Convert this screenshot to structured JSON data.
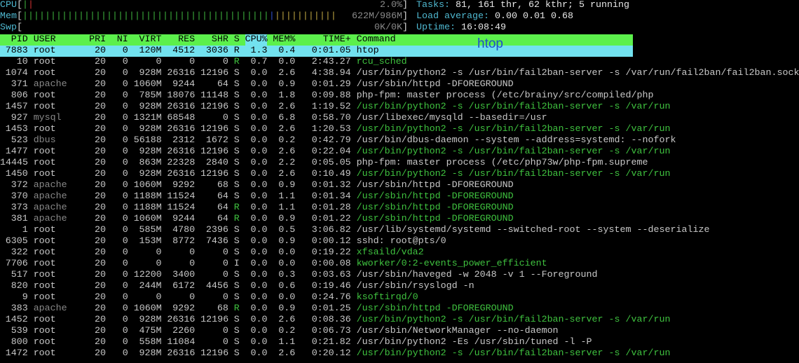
{
  "meters": {
    "cpu": {
      "label": "CPU",
      "value": "2.0%",
      "bars": [
        {
          "color": "green",
          "count": 1
        },
        {
          "color": "red",
          "count": 1
        }
      ]
    },
    "mem": {
      "label": "Mem",
      "value": "622M/986M",
      "bars": [
        {
          "color": "green",
          "count": 44
        },
        {
          "color": "blue",
          "count": 1
        },
        {
          "color": "yellow",
          "count": 11
        }
      ]
    },
    "swp": {
      "label": "Swp",
      "value": "0K/0K",
      "bars": []
    }
  },
  "summary": {
    "tasks_label": "Tasks:",
    "tasks_value": "81, 161 thr, 62 kthr; 5 running",
    "load_label": "Load average:",
    "load_value": "0.00 0.01 0.68",
    "uptime_label": "Uptime:",
    "uptime_value": "16:08:49"
  },
  "columns": [
    "PID",
    "USER",
    "PRI",
    "NI",
    "VIRT",
    "RES",
    "SHR",
    "S",
    "CPU%",
    "MEM%",
    "TIME+",
    "Command"
  ],
  "sort_column": "CPU%",
  "overlay_label": "htop",
  "processes": [
    {
      "pid": "7883",
      "user": "root",
      "pri": "20",
      "ni": "0",
      "virt": "120M",
      "res": "4512",
      "shr": "3036",
      "s": "R",
      "cpu": "1.3",
      "mem": "0.4",
      "time": "0:01.05",
      "cmd": "htop",
      "selected": true
    },
    {
      "pid": "10",
      "user": "root",
      "pri": "20",
      "ni": "0",
      "virt": "0",
      "res": "0",
      "shr": "0",
      "s": "R",
      "cpu": "0.7",
      "mem": "0.0",
      "time": "2:43.27",
      "cmd": "rcu_sched",
      "thread": true
    },
    {
      "pid": "1074",
      "user": "root",
      "pri": "20",
      "ni": "0",
      "virt": "928M",
      "res": "26316",
      "shr": "12196",
      "s": "S",
      "cpu": "0.0",
      "mem": "2.6",
      "time": "4:38.94",
      "cmd": "/usr/bin/python2 -s /usr/bin/fail2ban-server -s /var/run/fail2ban/fail2ban.sock"
    },
    {
      "pid": "371",
      "user": "apache",
      "pri": "20",
      "ni": "0",
      "virt": "1060M",
      "res": "9244",
      "shr": "64",
      "s": "S",
      "cpu": "0.0",
      "mem": "0.9",
      "time": "0:01.29",
      "cmd": "/usr/sbin/httpd -DFOREGROUND"
    },
    {
      "pid": "806",
      "user": "root",
      "pri": "20",
      "ni": "0",
      "virt": "785M",
      "res": "18076",
      "shr": "11148",
      "s": "S",
      "cpu": "0.0",
      "mem": "1.8",
      "time": "0:09.88",
      "cmd": "php-fpm: master process (/etc/brainy/src/compiled/php"
    },
    {
      "pid": "1457",
      "user": "root",
      "pri": "20",
      "ni": "0",
      "virt": "928M",
      "res": "26316",
      "shr": "12196",
      "s": "S",
      "cpu": "0.0",
      "mem": "2.6",
      "time": "1:19.52",
      "cmd": "/usr/bin/python2 -s /usr/bin/fail2ban-server -s /var/run",
      "thread": true
    },
    {
      "pid": "927",
      "user": "mysql",
      "pri": "20",
      "ni": "0",
      "virt": "1321M",
      "res": "68548",
      "shr": "0",
      "s": "S",
      "cpu": "0.0",
      "mem": "6.8",
      "time": "0:58.70",
      "cmd": "/usr/libexec/mysqld --basedir=/usr"
    },
    {
      "pid": "1453",
      "user": "root",
      "pri": "20",
      "ni": "0",
      "virt": "928M",
      "res": "26316",
      "shr": "12196",
      "s": "S",
      "cpu": "0.0",
      "mem": "2.6",
      "time": "1:20.53",
      "cmd": "/usr/bin/python2 -s /usr/bin/fail2ban-server -s /var/run",
      "thread": true
    },
    {
      "pid": "523",
      "user": "dbus",
      "pri": "20",
      "ni": "0",
      "virt": "56188",
      "res": "2312",
      "shr": "1672",
      "s": "S",
      "cpu": "0.0",
      "mem": "0.2",
      "time": "0:42.79",
      "cmd": "/usr/bin/dbus-daemon --system --address=systemd: --nofork"
    },
    {
      "pid": "1477",
      "user": "root",
      "pri": "20",
      "ni": "0",
      "virt": "928M",
      "res": "26316",
      "shr": "12196",
      "s": "S",
      "cpu": "0.0",
      "mem": "2.6",
      "time": "0:22.04",
      "cmd": "/usr/bin/python2 -s /usr/bin/fail2ban-server -s /var/run",
      "thread": true
    },
    {
      "pid": "14445",
      "user": "root",
      "pri": "20",
      "ni": "0",
      "virt": "863M",
      "res": "22328",
      "shr": "2840",
      "s": "S",
      "cpu": "0.0",
      "mem": "2.2",
      "time": "0:05.05",
      "cmd": "php-fpm: master process (/etc/php73w/php-fpm.supreme"
    },
    {
      "pid": "1450",
      "user": "root",
      "pri": "20",
      "ni": "0",
      "virt": "928M",
      "res": "26316",
      "shr": "12196",
      "s": "S",
      "cpu": "0.0",
      "mem": "2.6",
      "time": "0:10.49",
      "cmd": "/usr/bin/python2 -s /usr/bin/fail2ban-server -s /var/run",
      "thread": true
    },
    {
      "pid": "372",
      "user": "apache",
      "pri": "20",
      "ni": "0",
      "virt": "1060M",
      "res": "9292",
      "shr": "68",
      "s": "S",
      "cpu": "0.0",
      "mem": "0.9",
      "time": "0:01.32",
      "cmd": "/usr/sbin/httpd -DFOREGROUND"
    },
    {
      "pid": "370",
      "user": "apache",
      "pri": "20",
      "ni": "0",
      "virt": "1188M",
      "res": "11524",
      "shr": "64",
      "s": "S",
      "cpu": "0.0",
      "mem": "1.1",
      "time": "0:01.34",
      "cmd": "/usr/sbin/httpd -DFOREGROUND",
      "thread": true
    },
    {
      "pid": "373",
      "user": "apache",
      "pri": "20",
      "ni": "0",
      "virt": "1188M",
      "res": "11524",
      "shr": "64",
      "s": "R",
      "cpu": "0.0",
      "mem": "1.1",
      "time": "0:01.28",
      "cmd": "/usr/sbin/httpd -DFOREGROUND",
      "thread": true
    },
    {
      "pid": "381",
      "user": "apache",
      "pri": "20",
      "ni": "0",
      "virt": "1060M",
      "res": "9244",
      "shr": "64",
      "s": "R",
      "cpu": "0.0",
      "mem": "0.9",
      "time": "0:01.22",
      "cmd": "/usr/sbin/httpd -DFOREGROUND",
      "thread": true
    },
    {
      "pid": "1",
      "user": "root",
      "pri": "20",
      "ni": "0",
      "virt": "585M",
      "res": "4780",
      "shr": "2396",
      "s": "S",
      "cpu": "0.0",
      "mem": "0.5",
      "time": "3:06.82",
      "cmd": "/usr/lib/systemd/systemd --switched-root --system --deserialize"
    },
    {
      "pid": "6305",
      "user": "root",
      "pri": "20",
      "ni": "0",
      "virt": "153M",
      "res": "8772",
      "shr": "7436",
      "s": "S",
      "cpu": "0.0",
      "mem": "0.9",
      "time": "0:00.12",
      "cmd": "sshd: root@pts/0"
    },
    {
      "pid": "322",
      "user": "root",
      "pri": "20",
      "ni": "0",
      "virt": "0",
      "res": "0",
      "shr": "0",
      "s": "S",
      "cpu": "0.0",
      "mem": "0.0",
      "time": "0:19.22",
      "cmd": "xfsaild/vda2",
      "thread": true
    },
    {
      "pid": "7706",
      "user": "root",
      "pri": "20",
      "ni": "0",
      "virt": "0",
      "res": "0",
      "shr": "0",
      "s": "I",
      "cpu": "0.0",
      "mem": "0.0",
      "time": "0:00.08",
      "cmd": "kworker/0:2-events_power_efficient",
      "thread": true
    },
    {
      "pid": "517",
      "user": "root",
      "pri": "20",
      "ni": "0",
      "virt": "12200",
      "res": "3400",
      "shr": "0",
      "s": "S",
      "cpu": "0.0",
      "mem": "0.3",
      "time": "0:03.63",
      "cmd": "/usr/sbin/haveged -w 2048 -v 1 --Foreground"
    },
    {
      "pid": "820",
      "user": "root",
      "pri": "20",
      "ni": "0",
      "virt": "244M",
      "res": "6172",
      "shr": "4456",
      "s": "S",
      "cpu": "0.0",
      "mem": "0.6",
      "time": "0:19.46",
      "cmd": "/usr/sbin/rsyslogd -n"
    },
    {
      "pid": "9",
      "user": "root",
      "pri": "20",
      "ni": "0",
      "virt": "0",
      "res": "0",
      "shr": "0",
      "s": "S",
      "cpu": "0.0",
      "mem": "0.0",
      "time": "0:24.76",
      "cmd": "ksoftirqd/0",
      "thread": true
    },
    {
      "pid": "383",
      "user": "apache",
      "pri": "20",
      "ni": "0",
      "virt": "1060M",
      "res": "9292",
      "shr": "68",
      "s": "R",
      "cpu": "0.0",
      "mem": "0.9",
      "time": "0:01.25",
      "cmd": "/usr/sbin/httpd -DFOREGROUND",
      "thread": true
    },
    {
      "pid": "1452",
      "user": "root",
      "pri": "20",
      "ni": "0",
      "virt": "928M",
      "res": "26316",
      "shr": "12196",
      "s": "S",
      "cpu": "0.0",
      "mem": "2.6",
      "time": "0:08.36",
      "cmd": "/usr/bin/python2 -s /usr/bin/fail2ban-server -s /var/run",
      "thread": true
    },
    {
      "pid": "539",
      "user": "root",
      "pri": "20",
      "ni": "0",
      "virt": "475M",
      "res": "2260",
      "shr": "0",
      "s": "S",
      "cpu": "0.0",
      "mem": "0.2",
      "time": "0:06.73",
      "cmd": "/usr/sbin/NetworkManager --no-daemon"
    },
    {
      "pid": "800",
      "user": "root",
      "pri": "20",
      "ni": "0",
      "virt": "558M",
      "res": "11084",
      "shr": "0",
      "s": "S",
      "cpu": "0.0",
      "mem": "1.1",
      "time": "0:21.82",
      "cmd": "/usr/bin/python2 -Es /usr/sbin/tuned -l -P"
    },
    {
      "pid": "1472",
      "user": "root",
      "pri": "20",
      "ni": "0",
      "virt": "928M",
      "res": "26316",
      "shr": "12196",
      "s": "S",
      "cpu": "0.0",
      "mem": "2.6",
      "time": "0:20.12",
      "cmd": "/usr/bin/python2 -s /usr/bin/fail2ban-server -s /var/run",
      "thread": true
    }
  ]
}
